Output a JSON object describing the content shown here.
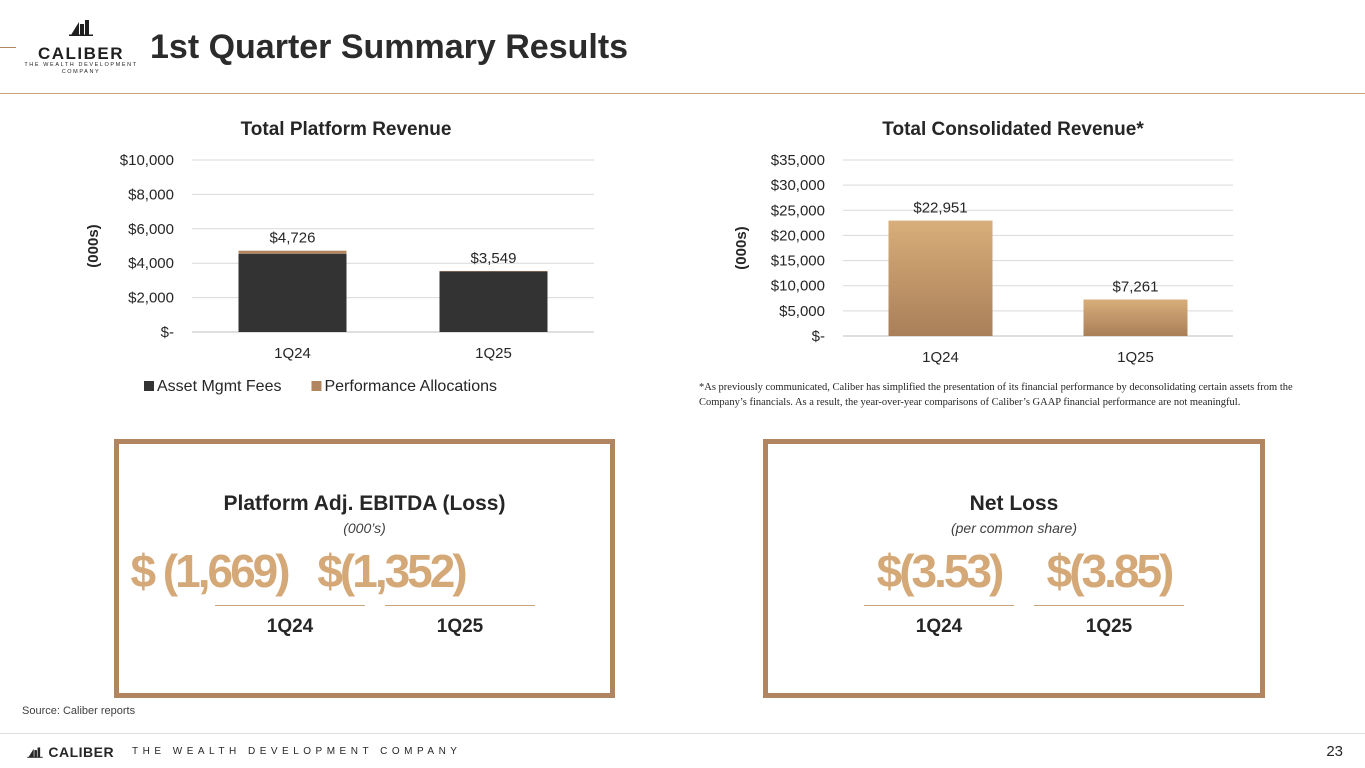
{
  "header": {
    "logo_word": "CALIBER",
    "logo_sub": "THE WEALTH DEVELOPMENT COMPANY",
    "title": "1st Quarter Summary Results"
  },
  "chart_data": [
    {
      "type": "bar",
      "stacked": true,
      "title": "Total Platform Revenue",
      "ylabel": "(000s)",
      "xlabel": "",
      "categories": [
        "1Q24",
        "1Q25"
      ],
      "series": [
        {
          "name": "Asset Mgmt Fees",
          "values": [
            4550,
            3520
          ],
          "color": "#333333"
        },
        {
          "name": "Performance Allocations",
          "values": [
            176,
            29
          ],
          "color": "#b08560"
        }
      ],
      "data_labels": [
        "$4,726",
        "$3,549"
      ],
      "yticks": [
        0,
        2000,
        4000,
        6000,
        8000,
        10000
      ],
      "ytick_labels": [
        "$-",
        "$2,000",
        "$4,000",
        "$6,000",
        "$8,000",
        "$10,000"
      ],
      "ylim": [
        0,
        10000
      ],
      "grid": true,
      "legend": "bottom"
    },
    {
      "type": "bar",
      "title": "Total Consolidated Revenue*",
      "ylabel": "(000s)",
      "xlabel": "",
      "categories": [
        "1Q24",
        "1Q25"
      ],
      "series": [
        {
          "name": "Total Consolidated Revenue",
          "values": [
            22951,
            7261
          ],
          "color": "#c49a6c"
        }
      ],
      "data_labels": [
        "$22,951",
        "$7,261"
      ],
      "yticks": [
        0,
        5000,
        10000,
        15000,
        20000,
        25000,
        30000,
        35000
      ],
      "ytick_labels": [
        "$-",
        "$5,000",
        "$10,000",
        "$15,000",
        "$20,000",
        "$25,000",
        "$30,000",
        "$35,000"
      ],
      "ylim": [
        0,
        35000
      ],
      "grid": true,
      "legend": "none"
    }
  ],
  "footnote": "*As previously communicated, Caliber has simplified the presentation of its financial performance by deconsolidating certain assets from the Company’s financials. As a result, the year-over-year comparisons of Caliber’s GAAP financial performance are not meaningful.",
  "ebitda": {
    "title": "Platform Adj. EBITDA (Loss)",
    "subtitle": "(000’s)",
    "items": [
      {
        "value": "$ (1,669)",
        "period": "1Q24"
      },
      {
        "value": "$(1,352)",
        "period": "1Q25"
      }
    ]
  },
  "netloss": {
    "title": "Net Loss",
    "subtitle": "(per common share)",
    "items": [
      {
        "value": "$(3.53)",
        "period": "1Q24"
      },
      {
        "value": "$(3.85)",
        "period": "1Q25"
      }
    ]
  },
  "source": "Source: Caliber reports",
  "footer": {
    "logo_word": "CALIBER",
    "tagline": "THE WEALTH DEVELOPMENT COMPANY",
    "page_number": "23"
  },
  "colors": {
    "accent": "#b08560",
    "dark_bar": "#333333",
    "highlight": "#d4a877"
  }
}
